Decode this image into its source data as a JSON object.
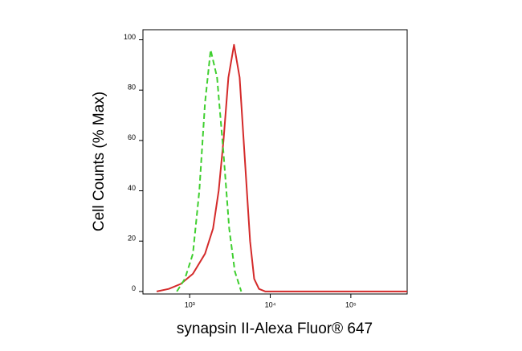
{
  "chart_data": {
    "type": "line",
    "x_label": "synapsin II-Alexa Fluor® 647",
    "y_label": "Cell Counts (% Max)",
    "xscale": "log",
    "xlim": [
      263,
      500000
    ],
    "xticks": [
      {
        "value": 1000,
        "label": "10³"
      },
      {
        "value": 10000,
        "label": "10⁴"
      },
      {
        "value": 100000,
        "label": "10⁵"
      }
    ],
    "ylim": [
      -1,
      104
    ],
    "yticks": [
      0,
      20,
      40,
      60,
      80,
      100
    ],
    "series": [
      {
        "color": "#d42a2a",
        "dash": false,
        "x": [
          389,
          550,
          776,
          1096,
          1549,
          1950,
          2291,
          2630,
          3020,
          3548,
          4169,
          4898,
          5623,
          6310,
          7244,
          8710,
          500000
        ],
        "values": [
          0,
          1,
          3,
          7,
          15,
          25,
          40,
          60,
          85,
          98,
          85,
          50,
          20,
          5,
          1,
          0,
          0
        ]
      },
      {
        "color": "#3fcf2f",
        "dash": true,
        "x": [
          692,
          871,
          1096,
          1318,
          1549,
          1820,
          2188,
          2630,
          3090,
          3631,
          4365
        ],
        "values": [
          0,
          5,
          15,
          40,
          75,
          96,
          85,
          55,
          25,
          8,
          0
        ]
      }
    ]
  }
}
